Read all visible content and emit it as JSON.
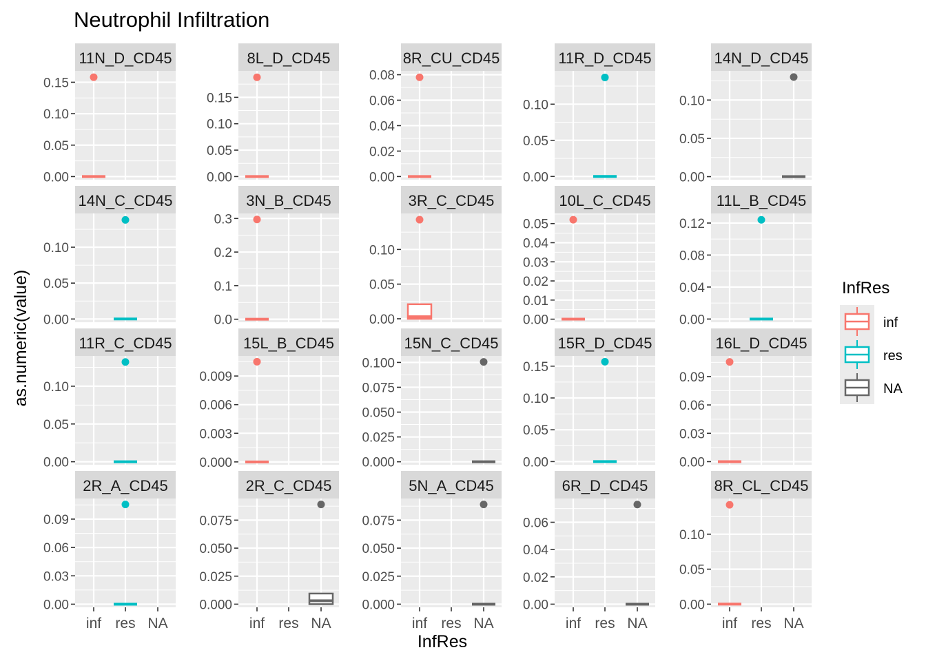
{
  "title": "Neutrophil Infiltration",
  "xlabel": "InfRes",
  "ylabel": "as.numeric(value)",
  "legend": {
    "title": "InfRes",
    "position": "right",
    "items": [
      {
        "label": "inf",
        "color": "#F8766D"
      },
      {
        "label": "res",
        "color": "#00BFC4"
      },
      {
        "label": "NA",
        "color": "#666666"
      }
    ]
  },
  "colors": {
    "inf": "#F8766D",
    "res": "#00BFC4",
    "NA": "#666666",
    "panel_bg": "#EBEBEB",
    "strip_bg": "#D9D9D9",
    "grid": "#FFFFFF"
  },
  "chart_data": {
    "type": "boxplot",
    "facet": "wrap",
    "categories": [
      "inf",
      "res",
      "NA"
    ],
    "grid": true,
    "panels": [
      {
        "label": "11N_D_CD45",
        "group": "inf",
        "box": [
          0,
          0,
          0,
          0,
          0
        ],
        "outlier": 0.158,
        "yticks": [
          0.0,
          0.05,
          0.1,
          0.15
        ],
        "ylabels": [
          "0.00",
          "0.05",
          "0.10",
          "0.15"
        ],
        "ylim": [
          -0.005,
          0.168
        ]
      },
      {
        "label": "8L_D_CD45",
        "group": "inf",
        "box": [
          0,
          0,
          0,
          0,
          0
        ],
        "outlier": 0.188,
        "yticks": [
          0.0,
          0.05,
          0.1,
          0.15
        ],
        "ylabels": [
          "0.00",
          "0.05",
          "0.10",
          "0.15"
        ],
        "ylim": [
          -0.006,
          0.2
        ]
      },
      {
        "label": "8R_CU_CD45",
        "group": "inf",
        "box": [
          0,
          0,
          0,
          0,
          0
        ],
        "outlier": 0.078,
        "yticks": [
          0.0,
          0.02,
          0.04,
          0.06,
          0.08
        ],
        "ylabels": [
          "0.00",
          "0.02",
          "0.04",
          "0.06",
          "0.08"
        ],
        "ylim": [
          -0.0025,
          0.083
        ]
      },
      {
        "label": "11R_D_CD45",
        "group": "res",
        "box": [
          0,
          0,
          0,
          0,
          0
        ],
        "outlier": 0.137,
        "yticks": [
          0.0,
          0.05,
          0.1
        ],
        "ylabels": [
          "0.00",
          "0.05",
          "0.10"
        ],
        "ylim": [
          -0.0045,
          0.146
        ]
      },
      {
        "label": "14N_D_CD45",
        "group": "NA",
        "box": [
          0,
          0,
          0,
          0,
          0
        ],
        "outlier": 0.13,
        "yticks": [
          0.0,
          0.05,
          0.1
        ],
        "ylabels": [
          "0.00",
          "0.05",
          "0.10"
        ],
        "ylim": [
          -0.004,
          0.138
        ]
      },
      {
        "label": "14N_C_CD45",
        "group": "res",
        "box": [
          0,
          0,
          0,
          0,
          0
        ],
        "outlier": 0.138,
        "yticks": [
          0.0,
          0.05,
          0.1
        ],
        "ylabels": [
          "0.00",
          "0.05",
          "0.10"
        ],
        "ylim": [
          -0.0045,
          0.147
        ]
      },
      {
        "label": "3N_B_CD45",
        "group": "inf",
        "box": [
          0,
          0,
          0,
          0,
          0
        ],
        "outlier": 0.297,
        "yticks": [
          0.0,
          0.1,
          0.2,
          0.3
        ],
        "ylabels": [
          "0.0",
          "0.1",
          "0.2",
          "0.3"
        ],
        "ylim": [
          -0.009,
          0.315
        ]
      },
      {
        "label": "3R_C_CD45",
        "group": "inf",
        "box": [
          0,
          0,
          0.003,
          0.021,
          0.021
        ],
        "outlier": 0.143,
        "yticks": [
          0.0,
          0.05,
          0.1
        ],
        "ylabels": [
          "0.00",
          "0.05",
          "0.10"
        ],
        "ylim": [
          -0.005,
          0.152
        ]
      },
      {
        "label": "10L_C_CD45",
        "group": "inf",
        "box": [
          0,
          0,
          0,
          0,
          0
        ],
        "outlier": 0.052,
        "yticks": [
          0.0,
          0.01,
          0.02,
          0.03,
          0.04,
          0.05
        ],
        "ylabels": [
          "0.00",
          "0.01",
          "0.02",
          "0.03",
          "0.04",
          "0.05"
        ],
        "ylim": [
          -0.0016,
          0.0553
        ]
      },
      {
        "label": "11L_B_CD45",
        "group": "res",
        "box": [
          0,
          0,
          0,
          0,
          0
        ],
        "outlier": 0.124,
        "yticks": [
          0.0,
          0.04,
          0.08,
          0.12
        ],
        "ylabels": [
          "0.00",
          "0.04",
          "0.08",
          "0.12"
        ],
        "ylim": [
          -0.004,
          0.132
        ]
      },
      {
        "label": "11R_C_CD45",
        "group": "res",
        "box": [
          0,
          0,
          0,
          0,
          0
        ],
        "outlier": 0.132,
        "yticks": [
          0.0,
          0.05,
          0.1
        ],
        "ylabels": [
          "0.00",
          "0.05",
          "0.10"
        ],
        "ylim": [
          -0.004,
          0.14
        ]
      },
      {
        "label": "15L_B_CD45",
        "group": "inf",
        "box": [
          0,
          0,
          0,
          0,
          0
        ],
        "outlier": 0.0105,
        "yticks": [
          0.0,
          0.003,
          0.006,
          0.009
        ],
        "ylabels": [
          "0.000",
          "0.003",
          "0.006",
          "0.009"
        ],
        "ylim": [
          -0.0003,
          0.0111
        ]
      },
      {
        "label": "15N_C_CD45",
        "group": "NA",
        "box": [
          0,
          0,
          0,
          0,
          0
        ],
        "outlier": 0.1005,
        "yticks": [
          0.0,
          0.025,
          0.05,
          0.075,
          0.1
        ],
        "ylabels": [
          "0.000",
          "0.025",
          "0.050",
          "0.075",
          "0.100"
        ],
        "ylim": [
          -0.003,
          0.1065
        ]
      },
      {
        "label": "15R_D_CD45",
        "group": "res",
        "box": [
          0,
          0,
          0,
          0,
          0
        ],
        "outlier": 0.157,
        "yticks": [
          0.0,
          0.05,
          0.1,
          0.15
        ],
        "ylabels": [
          "0.00",
          "0.05",
          "0.10",
          "0.15"
        ],
        "ylim": [
          -0.005,
          0.166
        ]
      },
      {
        "label": "16L_D_CD45",
        "group": "inf",
        "box": [
          0,
          0,
          0,
          0,
          0
        ],
        "outlier": 0.1055,
        "yticks": [
          0.0,
          0.03,
          0.06,
          0.09
        ],
        "ylabels": [
          "0.00",
          "0.03",
          "0.06",
          "0.09"
        ],
        "ylim": [
          -0.0033,
          0.1118
        ]
      },
      {
        "label": "2R_A_CD45",
        "group": "res",
        "box": [
          0,
          0,
          0,
          0,
          0
        ],
        "outlier": 0.1055,
        "yticks": [
          0.0,
          0.03,
          0.06,
          0.09
        ],
        "ylabels": [
          "0.00",
          "0.03",
          "0.06",
          "0.09"
        ],
        "ylim": [
          -0.0033,
          0.1118
        ]
      },
      {
        "label": "2R_C_CD45",
        "group": "NA",
        "box": [
          0,
          0,
          0.003,
          0.0095,
          0.0095
        ],
        "outlier": 0.089,
        "yticks": [
          0.0,
          0.025,
          0.05,
          0.075
        ],
        "ylabels": [
          "0.000",
          "0.025",
          "0.050",
          "0.075"
        ],
        "ylim": [
          -0.0028,
          0.0943
        ]
      },
      {
        "label": "5N_A_CD45",
        "group": "NA",
        "box": [
          0,
          0,
          0,
          0,
          0
        ],
        "outlier": 0.089,
        "yticks": [
          0.0,
          0.025,
          0.05,
          0.075
        ],
        "ylabels": [
          "0.000",
          "0.025",
          "0.050",
          "0.075"
        ],
        "ylim": [
          -0.0028,
          0.0943
        ]
      },
      {
        "label": "6R_D_CD45",
        "group": "NA",
        "box": [
          0,
          0,
          0,
          0,
          0
        ],
        "outlier": 0.073,
        "yticks": [
          0.0,
          0.02,
          0.04,
          0.06
        ],
        "ylabels": [
          "0.00",
          "0.02",
          "0.04",
          "0.06"
        ],
        "ylim": [
          -0.0023,
          0.0774
        ]
      },
      {
        "label": "8R_CL_CD45",
        "group": "inf",
        "box": [
          0,
          0,
          0,
          0,
          0
        ],
        "outlier": 0.142,
        "yticks": [
          0.0,
          0.05,
          0.1
        ],
        "ylabels": [
          "0.00",
          "0.05",
          "0.10"
        ],
        "ylim": [
          -0.0045,
          0.151
        ]
      }
    ]
  }
}
